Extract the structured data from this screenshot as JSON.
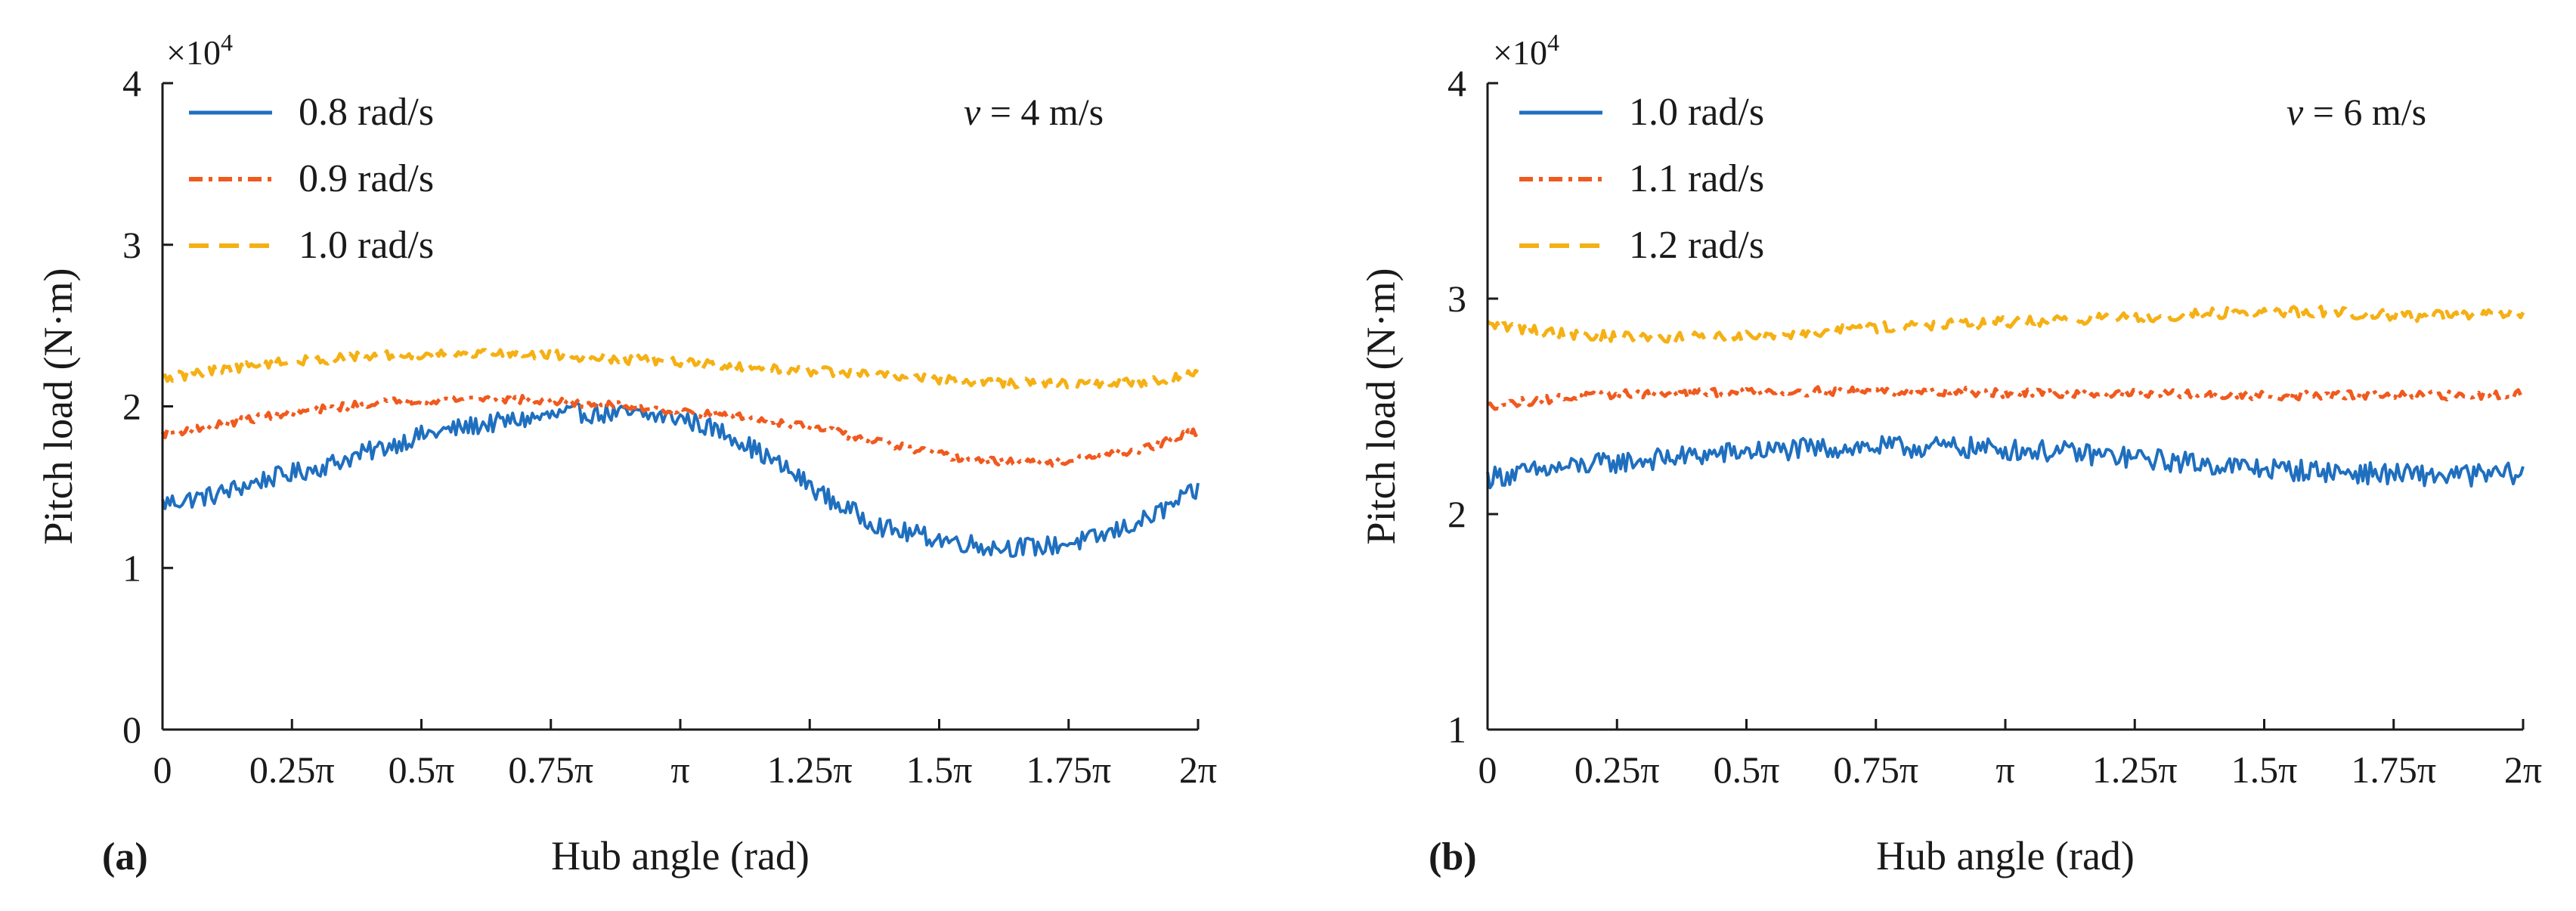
{
  "chart_data": [
    {
      "type": "line",
      "panel_label": "(a)",
      "velocity_label": "v = 4 m/s",
      "velocity_var": "v",
      "velocity_rest": " = 4 m/s",
      "exponent_label": "×10",
      "exponent_power": "4",
      "xlabel": "Hub angle (rad)",
      "ylabel": "Pitch load (N·m)",
      "xlim": [
        0,
        2
      ],
      "ylim": [
        0,
        4
      ],
      "x_unit": "π rad",
      "xticks": [
        0,
        0.25,
        0.5,
        0.75,
        1,
        1.25,
        1.5,
        1.75,
        2
      ],
      "xtick_labels": [
        "0",
        "0.25π",
        "0.5π",
        "0.75π",
        "π",
        "1.25π",
        "1.5π",
        "1.75π",
        "2π"
      ],
      "yticks": [
        0,
        1,
        2,
        3,
        4
      ],
      "ytick_labels": [
        "0",
        "1",
        "2",
        "3",
        "4"
      ],
      "series": [
        {
          "name": "0.8 rad/s",
          "color": "#1f6fbf",
          "dash": "solid",
          "noise": 0.06,
          "x": [
            0,
            0.1,
            0.2,
            0.3,
            0.4,
            0.5,
            0.6,
            0.7,
            0.8,
            0.9,
            1.0,
            1.1,
            1.2,
            1.3,
            1.4,
            1.5,
            1.6,
            1.7,
            1.8,
            1.9,
            2.0
          ],
          "values": [
            1.4,
            1.45,
            1.55,
            1.62,
            1.72,
            1.82,
            1.88,
            1.92,
            1.96,
            1.95,
            1.93,
            1.82,
            1.62,
            1.4,
            1.24,
            1.18,
            1.13,
            1.13,
            1.18,
            1.3,
            1.48
          ]
        },
        {
          "name": "0.9 rad/s",
          "color": "#f05a1e",
          "dash": "dashdot",
          "noise": 0.025,
          "x": [
            0,
            0.1,
            0.2,
            0.3,
            0.4,
            0.5,
            0.6,
            0.7,
            0.8,
            0.9,
            1.0,
            1.1,
            1.2,
            1.3,
            1.4,
            1.5,
            1.6,
            1.7,
            1.8,
            1.9,
            2.0
          ],
          "values": [
            1.83,
            1.88,
            1.94,
            1.98,
            2.02,
            2.04,
            2.05,
            2.04,
            2.02,
            2.0,
            1.97,
            1.94,
            1.9,
            1.84,
            1.77,
            1.7,
            1.66,
            1.65,
            1.68,
            1.74,
            1.85
          ]
        },
        {
          "name": "1.0 rad/s",
          "color": "#f5b014",
          "dash": "dashed",
          "noise": 0.03,
          "x": [
            0,
            0.1,
            0.2,
            0.3,
            0.4,
            0.5,
            0.6,
            0.7,
            0.8,
            0.9,
            1.0,
            1.1,
            1.2,
            1.3,
            1.4,
            1.5,
            1.6,
            1.7,
            1.8,
            1.9,
            2.0
          ],
          "values": [
            2.17,
            2.22,
            2.26,
            2.29,
            2.31,
            2.32,
            2.33,
            2.33,
            2.31,
            2.29,
            2.27,
            2.25,
            2.23,
            2.21,
            2.19,
            2.17,
            2.15,
            2.14,
            2.14,
            2.15,
            2.2
          ]
        }
      ]
    },
    {
      "type": "line",
      "panel_label": "(b)",
      "velocity_label": "v = 6 m/s",
      "velocity_var": "v",
      "velocity_rest": " = 6 m/s",
      "exponent_label": "×10",
      "exponent_power": "4",
      "xlabel": "Hub angle (rad)",
      "ylabel": "Pitch load (N·m)",
      "xlim": [
        0,
        2
      ],
      "ylim": [
        1,
        4
      ],
      "x_unit": "π rad",
      "xticks": [
        0,
        0.25,
        0.5,
        0.75,
        1,
        1.25,
        1.5,
        1.75,
        2
      ],
      "xtick_labels": [
        "0",
        "0.25π",
        "0.5π",
        "0.75π",
        "π",
        "1.25π",
        "1.5π",
        "1.75π",
        "2π"
      ],
      "yticks": [
        1,
        2,
        3,
        4
      ],
      "ytick_labels": [
        "1",
        "2",
        "3",
        "4"
      ],
      "series": [
        {
          "name": "1.0 rad/s",
          "color": "#1f6fbf",
          "dash": "solid",
          "noise": 0.05,
          "x": [
            0,
            0.1,
            0.2,
            0.3,
            0.4,
            0.5,
            0.6,
            0.7,
            0.8,
            0.9,
            1.0,
            1.1,
            1.2,
            1.3,
            1.4,
            1.5,
            1.6,
            1.7,
            1.8,
            1.9,
            2.0
          ],
          "values": [
            2.17,
            2.2,
            2.23,
            2.25,
            2.27,
            2.29,
            2.3,
            2.31,
            2.31,
            2.31,
            2.3,
            2.29,
            2.27,
            2.25,
            2.23,
            2.21,
            2.2,
            2.19,
            2.18,
            2.18,
            2.19
          ]
        },
        {
          "name": "1.1 rad/s",
          "color": "#f05a1e",
          "dash": "dashdot",
          "noise": 0.02,
          "x": [
            0,
            0.1,
            0.2,
            0.3,
            0.4,
            0.5,
            0.6,
            0.7,
            0.8,
            0.9,
            1.0,
            1.1,
            1.2,
            1.3,
            1.4,
            1.5,
            1.6,
            1.7,
            1.8,
            1.9,
            2.0
          ],
          "values": [
            2.5,
            2.53,
            2.55,
            2.56,
            2.56,
            2.57,
            2.57,
            2.57,
            2.57,
            2.57,
            2.56,
            2.56,
            2.56,
            2.56,
            2.55,
            2.55,
            2.55,
            2.55,
            2.55,
            2.55,
            2.56
          ]
        },
        {
          "name": "1.2 rad/s",
          "color": "#f5b014",
          "dash": "dashed",
          "noise": 0.025,
          "x": [
            0,
            0.1,
            0.2,
            0.3,
            0.4,
            0.5,
            0.6,
            0.7,
            0.8,
            0.9,
            1.0,
            1.1,
            1.2,
            1.3,
            1.4,
            1.5,
            1.6,
            1.7,
            1.8,
            1.9,
            2.0
          ],
          "values": [
            2.88,
            2.85,
            2.83,
            2.82,
            2.82,
            2.83,
            2.84,
            2.86,
            2.87,
            2.88,
            2.89,
            2.9,
            2.91,
            2.92,
            2.93,
            2.94,
            2.94,
            2.93,
            2.92,
            2.92,
            2.93
          ]
        }
      ]
    }
  ]
}
